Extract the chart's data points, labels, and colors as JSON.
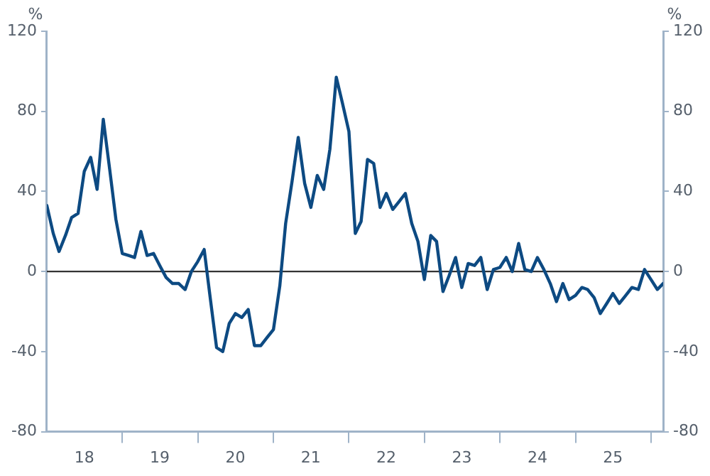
{
  "chart_data": {
    "type": "line",
    "ylabel": "%",
    "y2label": "%",
    "x": [
      "2018-01",
      "2018-02",
      "2018-03",
      "2018-04",
      "2018-05",
      "2018-06",
      "2018-07",
      "2018-08",
      "2018-09",
      "2018-10",
      "2018-11",
      "2018-12",
      "2019-01",
      "2019-02",
      "2019-03",
      "2019-04",
      "2019-05",
      "2019-06",
      "2019-07",
      "2019-08",
      "2019-09",
      "2019-10",
      "2019-11",
      "2019-12",
      "2020-01",
      "2020-02",
      "2020-03",
      "2020-04",
      "2020-05",
      "2020-06",
      "2020-07",
      "2020-08",
      "2020-09",
      "2020-10",
      "2020-11",
      "2020-12",
      "2021-01",
      "2021-02",
      "2021-03",
      "2021-04",
      "2021-05",
      "2021-06",
      "2021-07",
      "2021-08",
      "2021-09",
      "2021-10",
      "2021-11",
      "2021-12",
      "2022-01",
      "2022-02",
      "2022-03",
      "2022-04",
      "2022-05",
      "2022-06",
      "2022-07",
      "2022-08",
      "2022-09",
      "2022-10",
      "2022-11",
      "2022-12",
      "2023-01",
      "2023-02",
      "2023-03",
      "2023-04",
      "2023-05",
      "2023-06",
      "2023-07",
      "2023-08",
      "2023-09",
      "2023-10",
      "2023-11",
      "2023-12",
      "2024-01",
      "2024-02",
      "2024-03",
      "2024-04",
      "2024-05",
      "2024-06",
      "2024-07",
      "2024-08",
      "2024-09",
      "2024-10",
      "2024-11",
      "2024-12",
      "2025-01",
      "2025-02",
      "2025-03",
      "2025-04",
      "2025-05",
      "2025-06",
      "2025-07",
      "2025-08",
      "2025-09",
      "2025-10",
      "2025-11",
      "2025-12",
      "2026-01",
      "2026-02",
      "2026-03"
    ],
    "series": [
      {
        "color": "#0d4a82",
        "values": [
          33,
          19,
          10,
          18,
          27,
          29,
          50,
          57,
          41,
          76,
          51,
          26,
          9,
          8,
          7,
          20,
          8,
          9,
          3,
          -3,
          -6,
          -6,
          -9,
          0,
          5,
          11,
          -13,
          -38,
          -40,
          -26,
          -21,
          -23,
          -19,
          -37,
          -37,
          -33,
          -29,
          -7,
          24,
          45,
          67,
          44,
          32,
          48,
          41,
          61,
          97,
          84,
          70,
          19,
          25,
          56,
          54,
          32,
          39,
          31,
          35,
          39,
          24,
          15,
          -4,
          18,
          15,
          -10,
          -2,
          7,
          -8,
          4,
          3,
          7,
          -9,
          1,
          2,
          7,
          0,
          14,
          1,
          0,
          7,
          1,
          -6,
          -15,
          -6,
          -14,
          -12,
          -8,
          -9,
          -13,
          -21,
          -16,
          -11,
          -16,
          -12,
          -8,
          -9,
          1,
          -4,
          -9,
          -6
        ]
      }
    ],
    "xlim": [
      "2018-01",
      "2026-03"
    ],
    "xticks": [
      {
        "value": "2018-07",
        "label": "18"
      },
      {
        "value": "2019-01",
        "label": null
      },
      {
        "value": "2019-07",
        "label": "19"
      },
      {
        "value": "2020-01",
        "label": null
      },
      {
        "value": "2020-07",
        "label": "20"
      },
      {
        "value": "2021-01",
        "label": null
      },
      {
        "value": "2021-07",
        "label": "21"
      },
      {
        "value": "2022-01",
        "label": null
      },
      {
        "value": "2022-07",
        "label": "22"
      },
      {
        "value": "2023-01",
        "label": null
      },
      {
        "value": "2023-07",
        "label": "23"
      },
      {
        "value": "2024-01",
        "label": null
      },
      {
        "value": "2024-07",
        "label": "24"
      },
      {
        "value": "2025-01",
        "label": null
      },
      {
        "value": "2025-07",
        "label": "25"
      },
      {
        "value": "2026-01",
        "label": null
      }
    ],
    "ylim": [
      -80,
      120
    ],
    "yticks": [
      -80,
      -40,
      0,
      40,
      80,
      120
    ],
    "y2lim": [
      -80,
      120
    ],
    "y2ticks": [
      -80,
      -40,
      0,
      40,
      80,
      120
    ],
    "ref_lines": [
      {
        "axis": "y",
        "value": 0,
        "color": "#333333"
      }
    ],
    "grid": false,
    "legend": false,
    "marker": "none",
    "line_style": "solid"
  }
}
